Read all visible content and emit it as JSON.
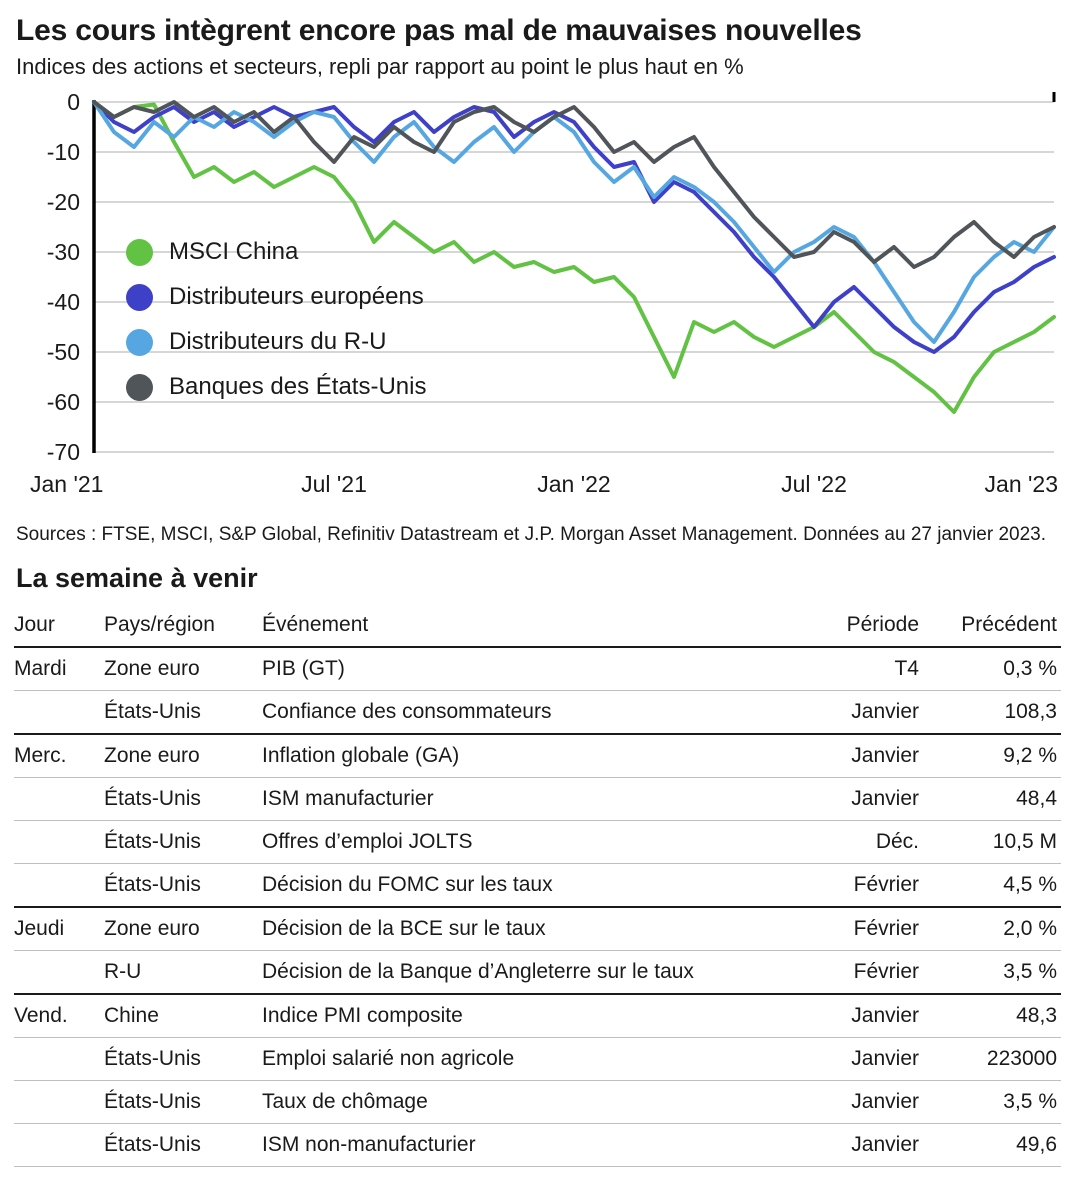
{
  "header": {
    "title": "Les cours intègrent encore pas mal de mauvaises nouvelles",
    "subtitle": "Indices des actions et secteurs, repli par rapport au point le plus haut en %"
  },
  "chart_data": {
    "type": "line",
    "title": "Les cours intègrent encore pas mal de mauvaises nouvelles",
    "xlabel": "",
    "ylabel": "Repli par rapport au point le plus haut en %",
    "ylim": [
      -70,
      0
    ],
    "y_ticks": [
      0,
      -10,
      -20,
      -30,
      -40,
      -50,
      -60,
      -70
    ],
    "grid": "horizontal",
    "legend_position": "inside-left",
    "x_range_months": [
      0,
      24
    ],
    "x_step_months": 0.5,
    "x_ticks": [
      {
        "m": 0,
        "label": "Jan '21"
      },
      {
        "m": 6,
        "label": "Jul '21"
      },
      {
        "m": 12,
        "label": "Jan '22"
      },
      {
        "m": 18,
        "label": "Jul '22"
      },
      {
        "m": 24,
        "label": "Jan '23"
      }
    ],
    "series": [
      {
        "name": "MSCI China",
        "color": "#62c244",
        "values": [
          0,
          -3,
          -1,
          -0.5,
          -8,
          -15,
          -13,
          -16,
          -14,
          -17,
          -15,
          -13,
          -15,
          -20,
          -28,
          -24,
          -27,
          -30,
          -28,
          -32,
          -30,
          -33,
          -32,
          -34,
          -33,
          -36,
          -35,
          -39,
          -47,
          -55,
          -44,
          -46,
          -44,
          -47,
          -49,
          -47,
          -45,
          -42,
          -46,
          -50,
          -52,
          -55,
          -58,
          -62,
          -55,
          -50,
          -48,
          -46,
          -43
        ]
      },
      {
        "name": "Distributeurs européens",
        "color": "#3e41c8",
        "values": [
          0,
          -4,
          -6,
          -3,
          -1,
          -4,
          -2,
          -5,
          -3,
          -1,
          -3,
          -2,
          -1,
          -5,
          -8,
          -4,
          -2,
          -6,
          -3,
          -1,
          -2,
          -7,
          -4,
          -2,
          -4,
          -9,
          -13,
          -12,
          -20,
          -16,
          -18,
          -22,
          -26,
          -31,
          -35,
          -40,
          -45,
          -40,
          -37,
          -41,
          -45,
          -48,
          -50,
          -47,
          -42,
          -38,
          -36,
          -33,
          -31
        ]
      },
      {
        "name": "Distributeurs du R-U",
        "color": "#56a7e1",
        "values": [
          0,
          -6,
          -9,
          -4,
          -7,
          -3,
          -5,
          -2,
          -4,
          -7,
          -4,
          -2,
          -3,
          -8,
          -12,
          -7,
          -4,
          -9,
          -12,
          -8,
          -5,
          -10,
          -6,
          -3,
          -6,
          -12,
          -16,
          -13,
          -19,
          -15,
          -17,
          -20,
          -24,
          -29,
          -34,
          -30,
          -28,
          -25,
          -27,
          -32,
          -38,
          -44,
          -48,
          -42,
          -35,
          -31,
          -28,
          -30,
          -25
        ]
      },
      {
        "name": "Banques des États-Unis",
        "color": "#50555a",
        "values": [
          0,
          -3,
          -1,
          -2,
          0,
          -3,
          -1,
          -4,
          -2,
          -6,
          -3,
          -8,
          -12,
          -7,
          -9,
          -5,
          -8,
          -10,
          -4,
          -2,
          -1,
          -4,
          -6,
          -3,
          -1,
          -5,
          -10,
          -8,
          -12,
          -9,
          -7,
          -13,
          -18,
          -23,
          -27,
          -31,
          -30,
          -26,
          -28,
          -32,
          -29,
          -33,
          -31,
          -27,
          -24,
          -28,
          -31,
          -27,
          -25
        ]
      }
    ]
  },
  "sources": "Sources : FTSE, MSCI, S&P Global, Refinitiv Datastream et J.P. Morgan Asset Management. Données au 27 janvier 2023.",
  "week_ahead": {
    "title": "La semaine à venir",
    "columns": [
      "Jour",
      "Pays/région",
      "Événement",
      "Période",
      "Précédent"
    ],
    "rows": [
      {
        "day": "Mardi",
        "region": "Zone euro",
        "event": "PIB (GT)",
        "period": "T4",
        "previous": "0,3 %",
        "group_start": true
      },
      {
        "day": "",
        "region": "États-Unis",
        "event": "Confiance des consommateurs",
        "period": "Janvier",
        "previous": "108,3",
        "group_start": false
      },
      {
        "day": "Merc.",
        "region": "Zone euro",
        "event": "Inflation globale (GA)",
        "period": "Janvier",
        "previous": "9,2 %",
        "group_start": true
      },
      {
        "day": "",
        "region": "États-Unis",
        "event": "ISM manufacturier",
        "period": "Janvier",
        "previous": "48,4",
        "group_start": false
      },
      {
        "day": "",
        "region": "États-Unis",
        "event": "Offres d’emploi JOLTS",
        "period": "Déc.",
        "previous": "10,5 M",
        "group_start": false
      },
      {
        "day": "",
        "region": "États-Unis",
        "event": "Décision du FOMC sur les taux",
        "period": "Février",
        "previous": "4,5 %",
        "group_start": false
      },
      {
        "day": "Jeudi",
        "region": "Zone euro",
        "event": "Décision de la BCE sur le taux",
        "period": "Février",
        "previous": "2,0 %",
        "group_start": true
      },
      {
        "day": "",
        "region": "R-U",
        "event": "Décision de la Banque d’Angleterre sur le taux",
        "period": "Février",
        "previous": "3,5 %",
        "group_start": false
      },
      {
        "day": "Vend.",
        "region": "Chine",
        "event": "Indice PMI composite",
        "period": "Janvier",
        "previous": "48,3",
        "group_start": true
      },
      {
        "day": "",
        "region": "États-Unis",
        "event": "Emploi salarié non agricole",
        "period": "Janvier",
        "previous": "223000",
        "group_start": false
      },
      {
        "day": "",
        "region": "États-Unis",
        "event": "Taux de chômage",
        "period": "Janvier",
        "previous": "3,5 %",
        "group_start": false
      },
      {
        "day": "",
        "region": "États-Unis",
        "event": "ISM non-manufacturier",
        "period": "Janvier",
        "previous": "49,6",
        "group_start": false
      }
    ]
  }
}
